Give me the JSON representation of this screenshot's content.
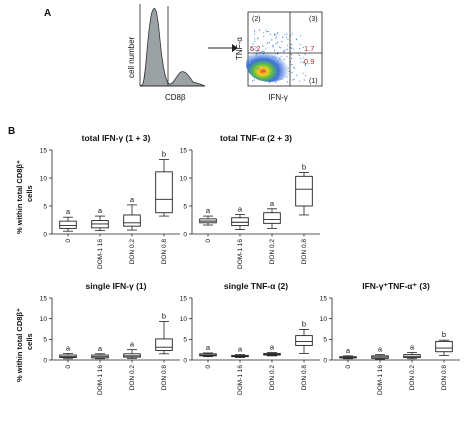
{
  "panel_a": {
    "letter": "A",
    "histogram": {
      "ylabel": "cell number",
      "xlabel": "CD8β"
    },
    "scatter": {
      "ylabel": "TNF-α",
      "xlabel": "IFN-γ",
      "quadrants": [
        "(2)",
        "(3)",
        "(1)"
      ],
      "values": [
        "5.2",
        "1.7",
        "0.9"
      ]
    }
  },
  "panel_b": {
    "letter": "B",
    "ylabel_line1": "% within total CD8β⁺",
    "ylabel_line2": "cells"
  },
  "chart_data": [
    {
      "type": "box",
      "title": "total IFN-γ (1 + 3)",
      "categories": [
        "0",
        "DOM-1 16",
        "DON 0.2",
        "DON 0.8"
      ],
      "ylim": [
        0,
        15
      ],
      "yticks": [
        0,
        5,
        10,
        15
      ],
      "boxes": [
        {
          "min": 0.5,
          "q1": 1.0,
          "median": 1.5,
          "q3": 2.3,
          "max": 3.0
        },
        {
          "min": 0.6,
          "q1": 1.1,
          "median": 1.8,
          "q3": 2.4,
          "max": 3.2
        },
        {
          "min": 0.7,
          "q1": 1.4,
          "median": 2.0,
          "q3": 3.4,
          "max": 5.2
        },
        {
          "min": 3.2,
          "q1": 3.8,
          "median": 6.2,
          "q3": 11.1,
          "max": 13.3
        }
      ],
      "labels": [
        "a",
        "a",
        "a",
        "b"
      ]
    },
    {
      "type": "box",
      "title": "total TNF-α (2 + 3)",
      "categories": [
        "0",
        "DOM-1 16",
        "DON 0.2",
        "DON 0.8"
      ],
      "ylim": [
        0,
        15
      ],
      "yticks": [
        0,
        5,
        10,
        15
      ],
      "boxes": [
        {
          "min": 1.6,
          "q1": 2.0,
          "median": 2.3,
          "q3": 2.7,
          "max": 3.2
        },
        {
          "min": 0.8,
          "q1": 1.5,
          "median": 2.1,
          "q3": 2.9,
          "max": 3.5
        },
        {
          "min": 1.0,
          "q1": 1.9,
          "median": 2.6,
          "q3": 3.8,
          "max": 4.5
        },
        {
          "min": 3.4,
          "q1": 5.0,
          "median": 8.0,
          "q3": 10.3,
          "max": 11.0
        }
      ],
      "labels": [
        "a",
        "a",
        "a",
        "b"
      ]
    },
    {
      "type": "box",
      "title": "single IFN-γ (1)",
      "categories": [
        "0",
        "DOM-1 16",
        "DON 0.2",
        "DON 0.8"
      ],
      "ylim": [
        0,
        15
      ],
      "yticks": [
        0,
        5,
        10,
        15
      ],
      "boxes": [
        {
          "min": 0.3,
          "q1": 0.6,
          "median": 0.8,
          "q3": 1.2,
          "max": 1.6
        },
        {
          "min": 0.3,
          "q1": 0.5,
          "median": 0.8,
          "q3": 1.2,
          "max": 1.5
        },
        {
          "min": 0.4,
          "q1": 0.7,
          "median": 1.0,
          "q3": 1.5,
          "max": 2.5
        },
        {
          "min": 1.5,
          "q1": 2.3,
          "median": 3.1,
          "q3": 5.1,
          "max": 9.3
        }
      ],
      "labels": [
        "a",
        "a",
        "a",
        "b"
      ]
    },
    {
      "type": "box",
      "title": "single TNF-α (2)",
      "categories": [
        "0",
        "DOM-1 16",
        "DON 0.2",
        "DON 0.8"
      ],
      "ylim": [
        0,
        15
      ],
      "yticks": [
        0,
        5,
        10,
        15
      ],
      "boxes": [
        {
          "min": 0.8,
          "q1": 1.0,
          "median": 1.2,
          "q3": 1.5,
          "max": 1.7
        },
        {
          "min": 0.6,
          "q1": 0.8,
          "median": 0.9,
          "q3": 1.1,
          "max": 1.3
        },
        {
          "min": 1.0,
          "q1": 1.2,
          "median": 1.4,
          "q3": 1.6,
          "max": 1.8
        },
        {
          "min": 1.6,
          "q1": 3.5,
          "median": 4.5,
          "q3": 5.9,
          "max": 7.4
        }
      ],
      "labels": [
        "a",
        "a",
        "a",
        "b"
      ]
    },
    {
      "type": "box",
      "title": "IFN-γ⁺TNF-α⁺ (3)",
      "categories": [
        "0",
        "DOM-1 16",
        "DON 0.2",
        "DON 0.8"
      ],
      "ylim": [
        0,
        15
      ],
      "yticks": [
        0,
        5,
        10,
        15
      ],
      "boxes": [
        {
          "min": 0.3,
          "q1": 0.5,
          "median": 0.6,
          "q3": 0.8,
          "max": 1.0
        },
        {
          "min": 0.2,
          "q1": 0.4,
          "median": 0.7,
          "q3": 1.0,
          "max": 1.3
        },
        {
          "min": 0.3,
          "q1": 0.6,
          "median": 0.9,
          "q3": 1.3,
          "max": 1.8
        },
        {
          "min": 1.1,
          "q1": 2.0,
          "median": 2.9,
          "q3": 4.5,
          "max": 4.8
        }
      ],
      "labels": [
        "a",
        "a",
        "a",
        "b"
      ]
    }
  ]
}
